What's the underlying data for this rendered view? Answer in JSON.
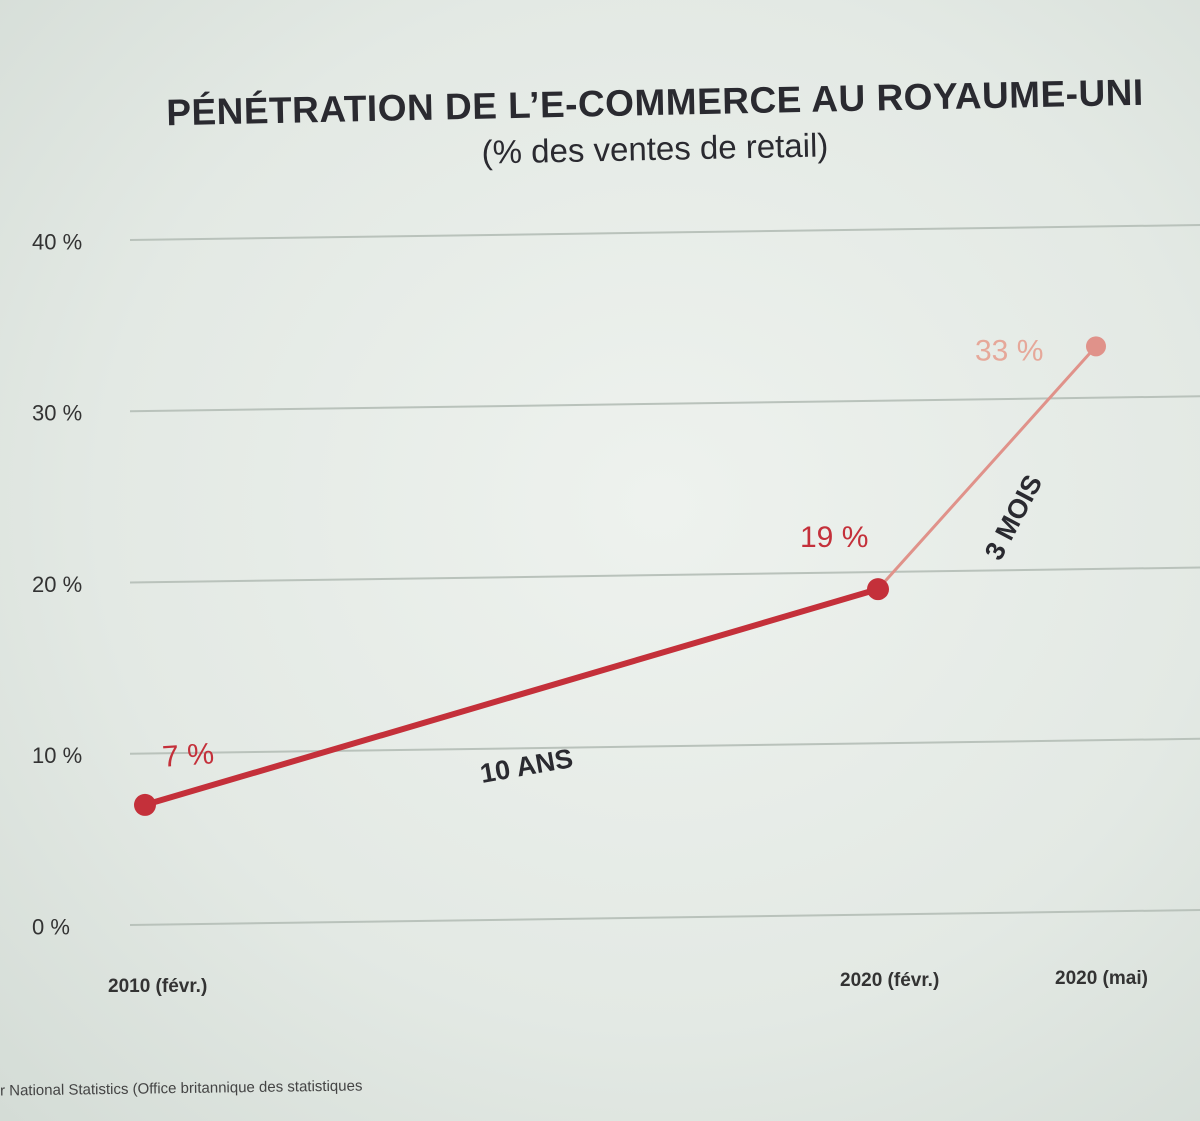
{
  "header": {
    "title": "PÉNÉTRATION DE L’E-COMMERCE AU ROYAUME-UNI",
    "subtitle": "(% des ventes de retail)"
  },
  "source": "r National Statistics (Office britannique des statistiques",
  "colors": {
    "line_primary": "#c4303a",
    "line_secondary": "#e0928a",
    "label_secondary": "#e6a89a",
    "grid": "#b9c2bb"
  },
  "chart_data": {
    "type": "line",
    "title": "PÉNÉTRATION DE L’E-COMMERCE AU ROYAUME-UNI",
    "subtitle": "(% des ventes de retail)",
    "ylim": [
      0,
      40
    ],
    "grid": true,
    "y_ticks": [
      "0 %",
      "10 %",
      "20 %",
      "30 %",
      "40 %"
    ],
    "x": [
      "2010 (févr.)",
      "2020 (févr.)",
      "2020 (mai)"
    ],
    "values": [
      7,
      19,
      33
    ],
    "data_labels": [
      "7 %",
      "19 %",
      "33 %"
    ],
    "annotations": [
      "10 ANS",
      "3 MOIS"
    ]
  }
}
